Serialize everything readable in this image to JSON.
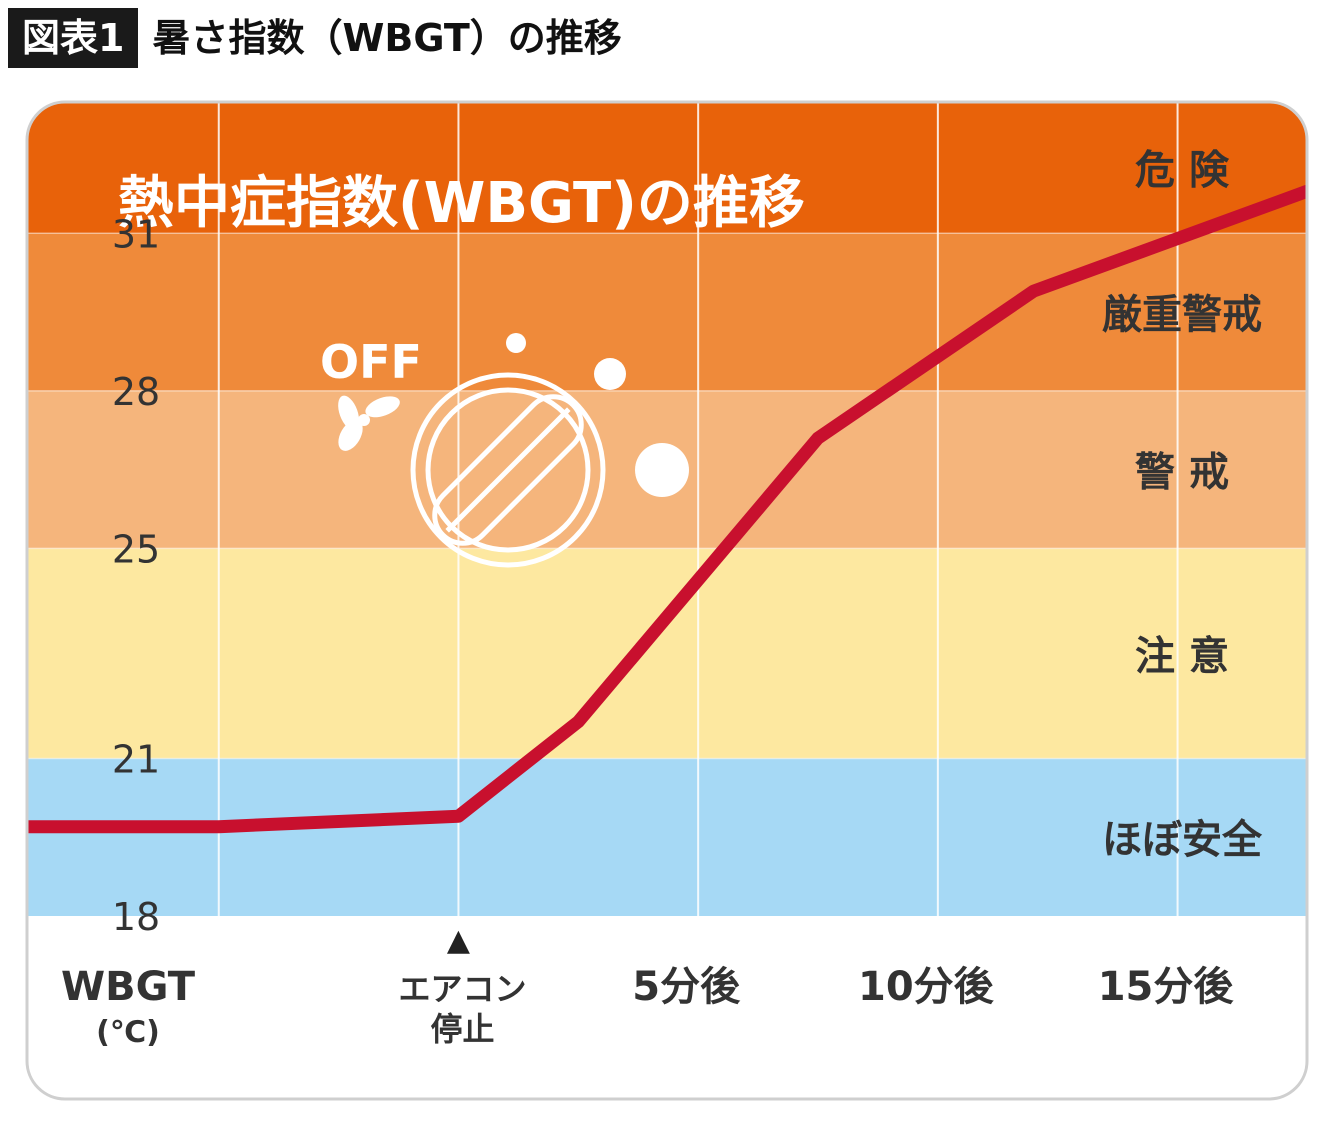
{
  "header": {
    "badge": "図表1",
    "title": "暑さ指数（WBGT）の推移"
  },
  "chart_data": {
    "type": "line",
    "title": "熱中症指数(WBGT)の推移",
    "ylabel_line1": "WBGT",
    "ylabel_line2": "(℃)",
    "x_ticks": [
      {
        "line1": "エアコン",
        "line2": "停止"
      },
      {
        "line1": "5分後",
        "line2": ""
      },
      {
        "line1": "10分後",
        "line2": ""
      },
      {
        "line1": "15分後",
        "line2": ""
      }
    ],
    "x_tick_minutes": [
      0,
      5,
      10,
      15
    ],
    "xlim": [
      -9,
      17.7
    ],
    "y_ticks": [
      18,
      21,
      25,
      28,
      31
    ],
    "ylim": [
      18,
      33.5
    ],
    "zones": [
      {
        "label": "ほぼ安全",
        "from": 18,
        "to": 21,
        "color": "#a6d9f5"
      },
      {
        "label": "注 意",
        "from": 21,
        "to": 25,
        "color": "#fde8a0"
      },
      {
        "label": "警 戒",
        "from": 25,
        "to": 28,
        "color": "#f5b57c"
      },
      {
        "label": "厳重警戒",
        "from": 28,
        "to": 31,
        "color": "#ef8a3a"
      },
      {
        "label": "危 険",
        "from": 31,
        "to": 33.5,
        "color": "#e8620a"
      }
    ],
    "series": [
      {
        "color": "#c8102e",
        "x": [
          -9,
          -5,
          0,
          2.5,
          7.5,
          12,
          17.7
        ],
        "y": [
          19.7,
          19.7,
          19.9,
          21.7,
          27.1,
          29.9,
          31.8
        ]
      }
    ],
    "grid": true,
    "marker_label": "▲",
    "illustration": {
      "text": "OFF",
      "icon": "ac-off-dial-icon"
    }
  }
}
